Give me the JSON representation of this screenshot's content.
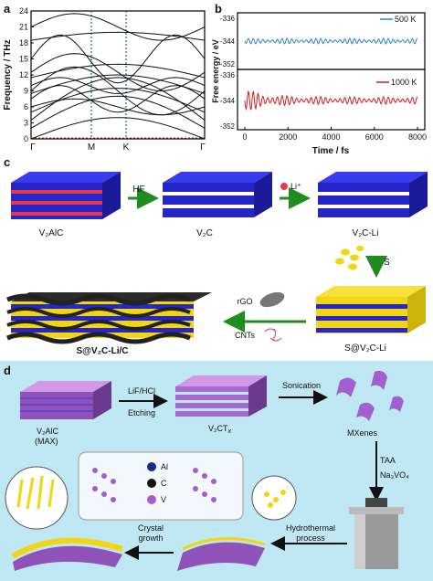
{
  "panels": {
    "a": "a",
    "b": "b",
    "c": "c",
    "d": "d"
  },
  "chart_data": [
    {
      "type": "line",
      "ylabel": "Frequency / THz",
      "ylim": [
        0,
        24
      ],
      "yticks": [
        "0",
        "3",
        "6",
        "9",
        "12",
        "15",
        "18",
        "21",
        "24"
      ],
      "xticks": [
        "Γ",
        "M",
        "K",
        "Γ"
      ],
      "note": "phonon dispersion"
    },
    {
      "type": "line",
      "xlabel": "Time / fs",
      "ylabel": "Free energy / eV",
      "xlim": [
        0,
        8000
      ],
      "xticks": [
        "0",
        "2000",
        "4000",
        "6000",
        "8000"
      ],
      "top_yticks": [
        "-336",
        "-344",
        "-352"
      ],
      "bottom_yticks": [
        "-336",
        "-344",
        "-352"
      ],
      "series": [
        {
          "name": "500 K",
          "color": "#2a86c0",
          "mean": -344,
          "amplitude": 2.5
        },
        {
          "name": "1000 K",
          "color": "#d21e1e",
          "mean": -344,
          "amplitude": 4
        }
      ]
    }
  ],
  "panel_c": {
    "v2alc": "V₂AlC",
    "hf": "HF",
    "v2c": "V₂C",
    "li_plus": "Li⁺",
    "v2c_li": "V₂C-Li",
    "s_label": "S",
    "rgo": "rGO",
    "cnts": "CNTs",
    "s_v2c_li": "S@V₂C-Li",
    "s_v2c_li_c": "S@V₂C-Li/C"
  },
  "panel_d": {
    "v2alc_max_line1": "V₂AlC",
    "v2alc_max_line2": "(MAX)",
    "lif_hcl": "LiF/HCl",
    "etching": "Etching",
    "v2ctx": "V₂CT",
    "v2ctx_sub": "x",
    "sonication": "Sonication",
    "mxenes": "MXenes",
    "taa": "TAA",
    "na3vo4": "Na₃VO₄",
    "hydrothermal_1": "Hydrothermal",
    "hydrothermal_2": "process",
    "crystal_1": "Crystal",
    "crystal_2": "growth",
    "legend_al": "Al",
    "legend_c": "C",
    "legend_v": "V"
  },
  "colors": {
    "blue_layer": "#2a2adf",
    "red_layer": "#e63a4c",
    "yellow": "#f3d60f",
    "green_arrow": "#1e8c1e",
    "purple": "#b06fd0",
    "bg_d": "#bfe8f4"
  }
}
